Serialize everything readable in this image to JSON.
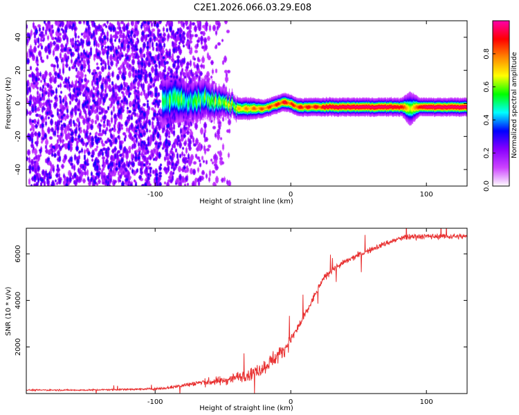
{
  "figure": {
    "title": "C2E1.2026.066.03.29.E08"
  },
  "colors": {
    "background": "#ffffff",
    "axes": "#000000",
    "snr_line": "#e83030"
  },
  "chart_data": [
    {
      "type": "heatmap",
      "xlabel": "Height of straight line (km)",
      "ylabel": "Frequency (Hz)",
      "xlim": [
        -195,
        130
      ],
      "ylim": [
        -50,
        50
      ],
      "xticks": [
        {
          "value": -100,
          "label": "-100"
        },
        {
          "value": 0,
          "label": "0"
        },
        {
          "value": 100,
          "label": "100"
        }
      ],
      "yticks": [
        {
          "value": -40,
          "label": "-40"
        },
        {
          "value": -20,
          "label": "-20"
        },
        {
          "value": 0,
          "label": "0"
        },
        {
          "value": 20,
          "label": "20"
        },
        {
          "value": 40,
          "label": "40"
        }
      ],
      "colorbar": {
        "label": "Normalized spectral amplitude",
        "range": [
          0,
          1
        ],
        "ticks": [
          {
            "value": 0.0,
            "label": "0.0"
          },
          {
            "value": 0.2,
            "label": "0.2"
          },
          {
            "value": 0.4,
            "label": "0.4"
          },
          {
            "value": 0.6,
            "label": "0.6"
          },
          {
            "value": 0.8,
            "label": "0.8"
          }
        ],
        "colormap": [
          "#ffffff",
          "#8800ff",
          "#0000ff",
          "#00ffff",
          "#00ff00",
          "#ffff00",
          "#ff8800",
          "#ff0000",
          "#ff00aa"
        ]
      },
      "ridge": {
        "x": [
          -95,
          -85,
          -75,
          -65,
          -55,
          -45,
          -38,
          -30,
          -20,
          -12,
          -5,
          0,
          5,
          15,
          30,
          50,
          70,
          82,
          88,
          95,
          100,
          110,
          130
        ],
        "freq": [
          1,
          3,
          1,
          3,
          1,
          0,
          -3,
          -3,
          -3,
          -1,
          1,
          0,
          -2,
          -2,
          -2,
          -2,
          -2,
          -2,
          -3,
          -2,
          -2,
          -2,
          -2
        ],
        "amplitude": [
          0.45,
          0.5,
          0.5,
          0.5,
          0.55,
          0.6,
          0.75,
          0.8,
          0.85,
          0.9,
          0.95,
          0.9,
          0.92,
          0.93,
          0.95,
          0.97,
          0.97,
          0.9,
          0.6,
          0.9,
          0.97,
          0.97,
          0.97
        ],
        "width_hz": [
          6,
          6,
          5,
          5,
          4,
          3,
          2.5,
          2.5,
          2,
          2,
          2,
          2,
          2,
          2,
          2,
          2,
          2,
          2,
          4,
          2,
          2,
          2,
          2
        ]
      },
      "noise_region": {
        "x_start": -195,
        "x_end": -50,
        "amplitude_range": [
          0.05,
          0.3
        ]
      }
    },
    {
      "type": "line",
      "xlabel": "Height of straight line (km)",
      "ylabel": "SNR (10 * v/v)",
      "xlim": [
        -195,
        130
      ],
      "ylim": [
        0,
        7100
      ],
      "xticks": [
        {
          "value": -100,
          "label": "-100"
        },
        {
          "value": 0,
          "label": "0"
        },
        {
          "value": 100,
          "label": "100"
        }
      ],
      "yticks": [
        {
          "value": 2000,
          "label": "2000"
        },
        {
          "value": 4000,
          "label": "4000"
        },
        {
          "value": 6000,
          "label": "6000"
        }
      ],
      "series": [
        {
          "name": "SNR",
          "x": [
            -195,
            -150,
            -120,
            -100,
            -90,
            -80,
            -70,
            -60,
            -50,
            -40,
            -30,
            -20,
            -15,
            -10,
            -5,
            0,
            5,
            10,
            15,
            20,
            25,
            30,
            40,
            50,
            60,
            70,
            80,
            90,
            100,
            110,
            120,
            130
          ],
          "y": [
            150,
            150,
            180,
            200,
            250,
            350,
            450,
            500,
            550,
            700,
            850,
            1100,
            1400,
            1600,
            1900,
            2300,
            2800,
            3300,
            3900,
            4500,
            5000,
            5300,
            5650,
            5950,
            6200,
            6450,
            6650,
            6750,
            6750,
            6750,
            6750,
            6750
          ],
          "noise_amplitude": [
            40,
            40,
            50,
            60,
            80,
            120,
            180,
            220,
            260,
            300,
            350,
            400,
            450,
            450,
            400,
            350,
            300,
            260,
            220,
            200,
            200,
            180,
            170,
            160,
            160,
            160,
            170,
            180,
            160,
            150,
            150,
            150
          ]
        }
      ]
    }
  ]
}
